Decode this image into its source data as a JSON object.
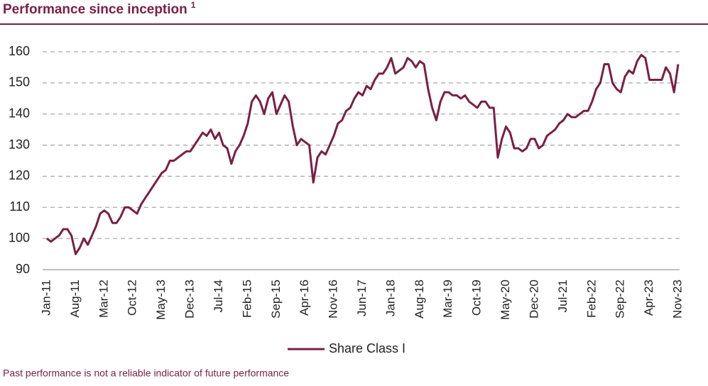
{
  "chart_data": {
    "type": "line",
    "title": "Performance since inception",
    "title_note": "1",
    "footnote": "Past performance is not a reliable indicator of future performance",
    "categories": [
      "Jan-11",
      null,
      null,
      null,
      null,
      null,
      null,
      "Aug-11",
      null,
      null,
      null,
      null,
      null,
      null,
      "Mar-12",
      null,
      null,
      null,
      null,
      null,
      null,
      "Oct-12",
      null,
      null,
      null,
      null,
      null,
      null,
      "May-13",
      null,
      null,
      null,
      null,
      null,
      null,
      "Dec-13",
      null,
      null,
      null,
      null,
      null,
      null,
      "Jul-14",
      null,
      null,
      null,
      null,
      null,
      null,
      "Feb-15",
      null,
      null,
      null,
      null,
      null,
      null,
      "Sep-15",
      null,
      null,
      null,
      null,
      null,
      null,
      "Apr-16",
      null,
      null,
      null,
      null,
      null,
      null,
      "Nov-16",
      null,
      null,
      null,
      null,
      null,
      null,
      "Jun-17",
      null,
      null,
      null,
      null,
      null,
      null,
      "Jan-18",
      null,
      null,
      null,
      null,
      null,
      null,
      "Aug-18",
      null,
      null,
      null,
      null,
      null,
      null,
      "Mar-19",
      null,
      null,
      null,
      null,
      null,
      null,
      "Oct-19",
      null,
      null,
      null,
      null,
      null,
      null,
      "May-20",
      null,
      null,
      null,
      null,
      null,
      null,
      "Dec-20",
      null,
      null,
      null,
      null,
      null,
      null,
      "Jul-21",
      null,
      null,
      null,
      null,
      null,
      null,
      "Feb-22",
      null,
      null,
      null,
      null,
      null,
      null,
      "Sep-22",
      null,
      null,
      null,
      null,
      null,
      null,
      "Apr-23",
      null,
      null,
      null,
      null,
      null,
      null,
      "Nov-23"
    ],
    "series": [
      {
        "name": "Share Class I",
        "color": "#7a1f45",
        "values": [
          100,
          99,
          100,
          101,
          103,
          103,
          101,
          95,
          97,
          100,
          98,
          101,
          104,
          108,
          109,
          108,
          105,
          105,
          107,
          110,
          110,
          109,
          108,
          111,
          113,
          115,
          117,
          119,
          121,
          122,
          125,
          125,
          126,
          127,
          128,
          128,
          130,
          132,
          134,
          133,
          135,
          132,
          134,
          130,
          129,
          124,
          128,
          130,
          133,
          137,
          144,
          146,
          144,
          140,
          145,
          147,
          140,
          143,
          146,
          144,
          136,
          130,
          132,
          131,
          130,
          118,
          126,
          128,
          127,
          130,
          133,
          137,
          138,
          141,
          142,
          145,
          147,
          146,
          149,
          148,
          151,
          153,
          153,
          155,
          158,
          153,
          154,
          155,
          158,
          157,
          155,
          157,
          156,
          148,
          142,
          138,
          144,
          147,
          147,
          146,
          146,
          145,
          146,
          144,
          143,
          142,
          144,
          144,
          142,
          142,
          126,
          132,
          136,
          134,
          129,
          129,
          128,
          129,
          132,
          132,
          129,
          130,
          133,
          134,
          135,
          137,
          138,
          140,
          139,
          139,
          140,
          141,
          141,
          144,
          148,
          150,
          156,
          156,
          150,
          148,
          147,
          152,
          154,
          153,
          157,
          159,
          158,
          151,
          151,
          151,
          151,
          155,
          153,
          147,
          156
        ]
      }
    ],
    "ylim": [
      90,
      160
    ],
    "yticks": [
      90,
      100,
      110,
      120,
      130,
      140,
      150,
      160
    ],
    "grid": true
  }
}
